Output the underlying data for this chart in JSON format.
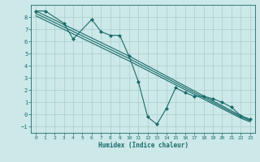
{
  "xlabel": "Humidex (Indice chaleur)",
  "bg_color": "#cce8e8",
  "grid_color": "#aacccc",
  "line_color": "#1a6b6b",
  "xlim": [
    -0.5,
    23.5
  ],
  "ylim": [
    -1.5,
    9.0
  ],
  "yticks": [
    -1,
    0,
    1,
    2,
    3,
    4,
    5,
    6,
    7,
    8
  ],
  "xticks": [
    0,
    1,
    2,
    3,
    4,
    5,
    6,
    7,
    8,
    9,
    10,
    11,
    12,
    13,
    14,
    15,
    16,
    17,
    18,
    19,
    20,
    21,
    22,
    23
  ],
  "series": [
    {
      "x": [
        0,
        1,
        3,
        4,
        6,
        7,
        8,
        9,
        10,
        11,
        12,
        13,
        14,
        15,
        16,
        17,
        18,
        19,
        20,
        21,
        22,
        23
      ],
      "y": [
        8.5,
        8.5,
        7.5,
        6.2,
        7.8,
        6.8,
        6.5,
        6.5,
        4.8,
        2.7,
        -0.2,
        -0.8,
        0.5,
        2.2,
        1.8,
        1.5,
        1.5,
        1.3,
        1.0,
        0.6,
        -0.1,
        -0.4
      ]
    },
    {
      "x": [
        0,
        10,
        22,
        23
      ],
      "y": [
        8.5,
        4.8,
        -0.1,
        -0.4
      ]
    },
    {
      "x": [
        0,
        10,
        22,
        23
      ],
      "y": [
        8.3,
        4.6,
        -0.2,
        -0.5
      ]
    },
    {
      "x": [
        0,
        10,
        22,
        23
      ],
      "y": [
        8.1,
        4.4,
        -0.3,
        -0.6
      ]
    }
  ]
}
